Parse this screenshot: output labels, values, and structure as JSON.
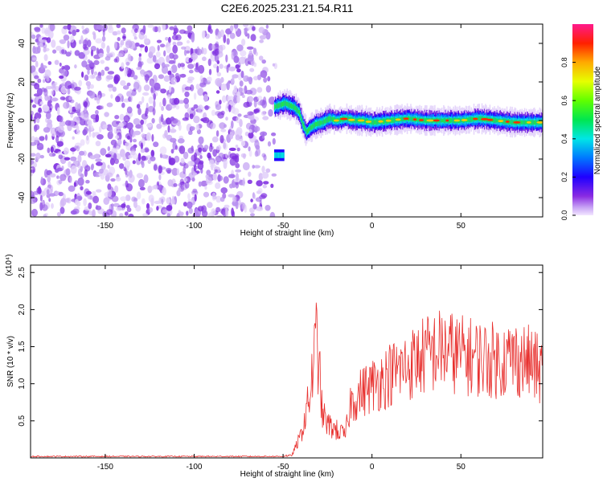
{
  "title": "C2E6.2025.231.21.54.R11",
  "chart_data": [
    {
      "type": "heatmap",
      "xlabel": "Height of straight line (km)",
      "ylabel": "Frequency (Hz)",
      "xlim": [
        -192,
        96
      ],
      "ylim": [
        -50,
        50
      ],
      "xticks": [
        -150,
        -100,
        -50,
        0,
        50
      ],
      "yticks": [
        -40,
        -20,
        0,
        20,
        40
      ],
      "grid": false,
      "noise_region_x": [
        -192,
        -52
      ],
      "signal_track": {
        "x": [
          -55,
          -52,
          -49,
          -47,
          -44,
          -41,
          -39,
          -37,
          -35,
          -32,
          -28,
          -24,
          -20,
          -15,
          -10,
          -5,
          0,
          10,
          20,
          30,
          40,
          50,
          60,
          70,
          80,
          90,
          96
        ],
        "frequency": [
          7,
          8,
          9,
          8,
          7,
          4,
          -2,
          -6,
          -4,
          -2,
          -1,
          1,
          0,
          1,
          0,
          0,
          -1,
          0,
          1,
          0,
          0,
          0,
          1,
          0,
          -1,
          -1,
          -1
        ]
      },
      "colorbar": {
        "label": "Normalized spectral amplitude",
        "range": [
          0.0,
          1.0
        ],
        "ticks": [
          "0.0",
          "0.2",
          "0.4",
          "0.6",
          "0.8"
        ]
      }
    },
    {
      "type": "line",
      "xlabel": "Height of straight line (km)",
      "ylabel": "SNR (10 * v/v)",
      "scale_label": "(x10⁴)",
      "xlim": [
        -192,
        96
      ],
      "ylim": [
        0,
        2.6
      ],
      "xticks": [
        -150,
        -100,
        -50,
        0,
        50
      ],
      "yticks": [
        "0.5",
        "1.0",
        "1.5",
        "2.0",
        "2.5"
      ],
      "series_color": "#e8312f",
      "envelope": {
        "x": [
          -192,
          -50,
          -45,
          -40,
          -35,
          -31,
          -28,
          -25,
          -20,
          -15,
          -12,
          -5,
          0,
          10,
          20,
          30,
          40,
          50,
          60,
          70,
          80,
          90,
          96
        ],
        "value": [
          0.02,
          0.02,
          0.05,
          0.4,
          1.1,
          2.2,
          0.8,
          0.6,
          0.5,
          0.4,
          1.0,
          1.2,
          1.3,
          1.5,
          1.65,
          1.85,
          1.95,
          1.85,
          1.8,
          1.75,
          1.8,
          1.7,
          1.5
        ]
      }
    }
  ]
}
